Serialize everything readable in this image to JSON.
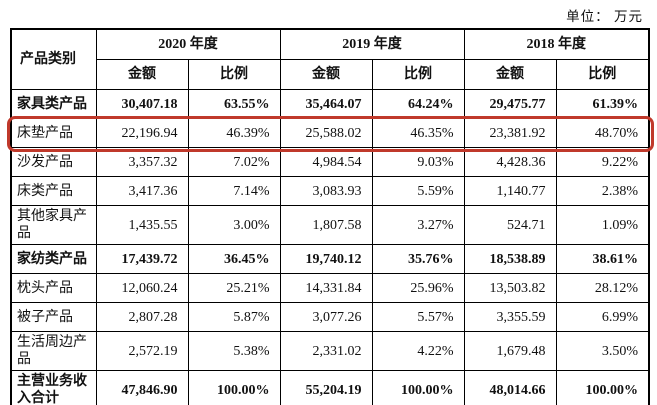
{
  "unit_label": "单位： 万元",
  "table": {
    "highlight_color": "#c0392b",
    "header": {
      "product_category": "产品类别",
      "years": [
        "2020 年度",
        "2019 年度",
        "2018 年度"
      ],
      "amount": "金额",
      "ratio": "比例"
    },
    "rows": [
      {
        "label": "家具类产品",
        "bold": true,
        "highlight": false,
        "cells": [
          "30,407.18",
          "63.55%",
          "35,464.07",
          "64.24%",
          "29,475.77",
          "61.39%"
        ]
      },
      {
        "label": "床垫产品",
        "bold": false,
        "highlight": true,
        "cells": [
          "22,196.94",
          "46.39%",
          "25,588.02",
          "46.35%",
          "23,381.92",
          "48.70%"
        ]
      },
      {
        "label": "沙发产品",
        "bold": false,
        "highlight": false,
        "cells": [
          "3,357.32",
          "7.02%",
          "4,984.54",
          "9.03%",
          "4,428.36",
          "9.22%"
        ]
      },
      {
        "label": "床类产品",
        "bold": false,
        "highlight": false,
        "cells": [
          "3,417.36",
          "7.14%",
          "3,083.93",
          "5.59%",
          "1,140.77",
          "2.38%"
        ]
      },
      {
        "label": "其他家具产品",
        "bold": false,
        "highlight": false,
        "cells": [
          "1,435.55",
          "3.00%",
          "1,807.58",
          "3.27%",
          "524.71",
          "1.09%"
        ]
      },
      {
        "label": "家纺类产品",
        "bold": true,
        "highlight": false,
        "cells": [
          "17,439.72",
          "36.45%",
          "19,740.12",
          "35.76%",
          "18,538.89",
          "38.61%"
        ]
      },
      {
        "label": "枕头产品",
        "bold": false,
        "highlight": false,
        "cells": [
          "12,060.24",
          "25.21%",
          "14,331.84",
          "25.96%",
          "13,503.82",
          "28.12%"
        ]
      },
      {
        "label": "被子产品",
        "bold": false,
        "highlight": false,
        "cells": [
          "2,807.28",
          "5.87%",
          "3,077.26",
          "5.57%",
          "3,355.59",
          "6.99%"
        ]
      },
      {
        "label": "生活周边产品",
        "bold": false,
        "highlight": false,
        "cells": [
          "2,572.19",
          "5.38%",
          "2,331.02",
          "4.22%",
          "1,679.48",
          "3.50%"
        ]
      },
      {
        "label": "主营业务收入合计",
        "bold": true,
        "highlight": false,
        "cells": [
          "47,846.90",
          "100.00%",
          "55,204.19",
          "100.00%",
          "48,014.66",
          "100.00%"
        ]
      }
    ]
  }
}
